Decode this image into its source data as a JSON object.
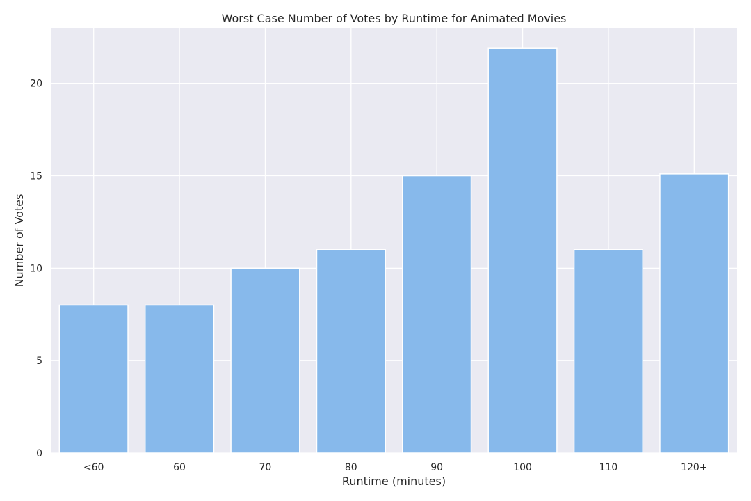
{
  "chart_data": {
    "type": "bar",
    "title": "Worst Case Number of Votes by Runtime for Animated Movies",
    "xlabel": "Runtime (minutes)",
    "ylabel": "Number of Votes",
    "categories": [
      "<60",
      "60",
      "70",
      "80",
      "90",
      "100",
      "110",
      "120+"
    ],
    "values": [
      8,
      8,
      10,
      11,
      15,
      21.9,
      11,
      15.1
    ],
    "ylim": [
      0,
      23
    ],
    "yticks": [
      0,
      5,
      10,
      15,
      20
    ],
    "grid": true,
    "legend": "none",
    "colors": {
      "bar": "#87b9eb",
      "plot_background": "#eaeaf2",
      "grid": "#ffffff"
    }
  }
}
